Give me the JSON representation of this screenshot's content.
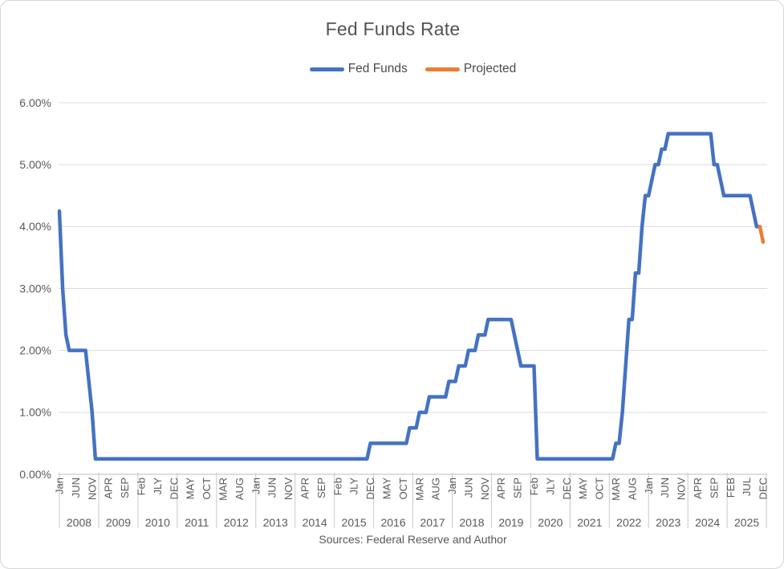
{
  "chart_data": {
    "type": "line",
    "title": "Fed Funds Rate",
    "footer": "Sources: Federal Reserve and Author",
    "x_start": "Jan 2008",
    "x_end": "Dec 2025",
    "n_months": 216,
    "xtick_every_months": 5,
    "xtick_labels": [
      "Jan",
      "JUN",
      "NOV",
      "APR",
      "SEP",
      "Feb",
      "JLY",
      "DEC",
      "MAY",
      "OCT",
      "MAR",
      "AUG",
      "Jan",
      "JUN",
      "NOV",
      "APR",
      "SEP",
      "Feb",
      "JLY",
      "DEC",
      "MAY",
      "OCT",
      "MAR",
      "AUG",
      "Jan",
      "JUN",
      "NOV",
      "APR",
      "SEP",
      "Feb",
      "JLY",
      "DEC",
      "MAY",
      "OCT",
      "MAR",
      "AUG",
      "Jan",
      "JUN",
      "NOV",
      "APR",
      "SEP",
      "FEB",
      "JUL",
      "DEC"
    ],
    "years": [
      "2008",
      "2009",
      "2010",
      "2011",
      "2012",
      "2013",
      "2014",
      "2015",
      "2016",
      "2017",
      "2018",
      "2019",
      "2020",
      "2021",
      "2022",
      "2023",
      "2024",
      "2025"
    ],
    "ylim": [
      0,
      6
    ],
    "ytick_labels": [
      "0.00%",
      "1.00%",
      "2.00%",
      "3.00%",
      "4.00%",
      "5.00%",
      "6.00%"
    ],
    "grid": "horizontal",
    "legend_position": "top",
    "legend": [
      {
        "name": "Fed Funds",
        "color": "#4472C4"
      },
      {
        "name": "Projected",
        "color": "#ED7D31"
      }
    ],
    "series": [
      {
        "name": "Fed Funds",
        "color": "#4472C4",
        "start_index": 0,
        "values": [
          4.25,
          3,
          2.25,
          2,
          2,
          2,
          2,
          2,
          2,
          1.5,
          1,
          0.25,
          0.25,
          0.25,
          0.25,
          0.25,
          0.25,
          0.25,
          0.25,
          0.25,
          0.25,
          0.25,
          0.25,
          0.25,
          0.25,
          0.25,
          0.25,
          0.25,
          0.25,
          0.25,
          0.25,
          0.25,
          0.25,
          0.25,
          0.25,
          0.25,
          0.25,
          0.25,
          0.25,
          0.25,
          0.25,
          0.25,
          0.25,
          0.25,
          0.25,
          0.25,
          0.25,
          0.25,
          0.25,
          0.25,
          0.25,
          0.25,
          0.25,
          0.25,
          0.25,
          0.25,
          0.25,
          0.25,
          0.25,
          0.25,
          0.25,
          0.25,
          0.25,
          0.25,
          0.25,
          0.25,
          0.25,
          0.25,
          0.25,
          0.25,
          0.25,
          0.25,
          0.25,
          0.25,
          0.25,
          0.25,
          0.25,
          0.25,
          0.25,
          0.25,
          0.25,
          0.25,
          0.25,
          0.25,
          0.25,
          0.25,
          0.25,
          0.25,
          0.25,
          0.25,
          0.25,
          0.25,
          0.25,
          0.25,
          0.25,
          0.5,
          0.5,
          0.5,
          0.5,
          0.5,
          0.5,
          0.5,
          0.5,
          0.5,
          0.5,
          0.5,
          0.5,
          0.75,
          0.75,
          0.75,
          1,
          1,
          1,
          1.25,
          1.25,
          1.25,
          1.25,
          1.25,
          1.25,
          1.5,
          1.5,
          1.5,
          1.75,
          1.75,
          1.75,
          2,
          2,
          2,
          2.25,
          2.25,
          2.25,
          2.5,
          2.5,
          2.5,
          2.5,
          2.5,
          2.5,
          2.5,
          2.5,
          2.25,
          2,
          1.75,
          1.75,
          1.75,
          1.75,
          1.75,
          0.25,
          0.25,
          0.25,
          0.25,
          0.25,
          0.25,
          0.25,
          0.25,
          0.25,
          0.25,
          0.25,
          0.25,
          0.25,
          0.25,
          0.25,
          0.25,
          0.25,
          0.25,
          0.25,
          0.25,
          0.25,
          0.25,
          0.25,
          0.25,
          0.5,
          0.5,
          1,
          1.75,
          2.5,
          2.5,
          3.25,
          3.25,
          4,
          4.5,
          4.5,
          4.75,
          5,
          5,
          5.25,
          5.25,
          5.5,
          5.5,
          5.5,
          5.5,
          5.5,
          5.5,
          5.5,
          5.5,
          5.5,
          5.5,
          5.5,
          5.5,
          5.5,
          5.5,
          5,
          5,
          4.75,
          4.5,
          4.5,
          4.5,
          4.5,
          4.5,
          4.5,
          4.5,
          4.5,
          4.5,
          4.25,
          4,
          4
        ]
      },
      {
        "name": "Projected",
        "color": "#ED7D31",
        "start_index": 214,
        "values": [
          4,
          3.75
        ]
      }
    ]
  },
  "colors": {
    "gridline": "#dcdcdc",
    "axis_line": "#c9c9c9",
    "separator": "#c9c9c9",
    "label_text": "#595959",
    "title_text": "#535353"
  }
}
